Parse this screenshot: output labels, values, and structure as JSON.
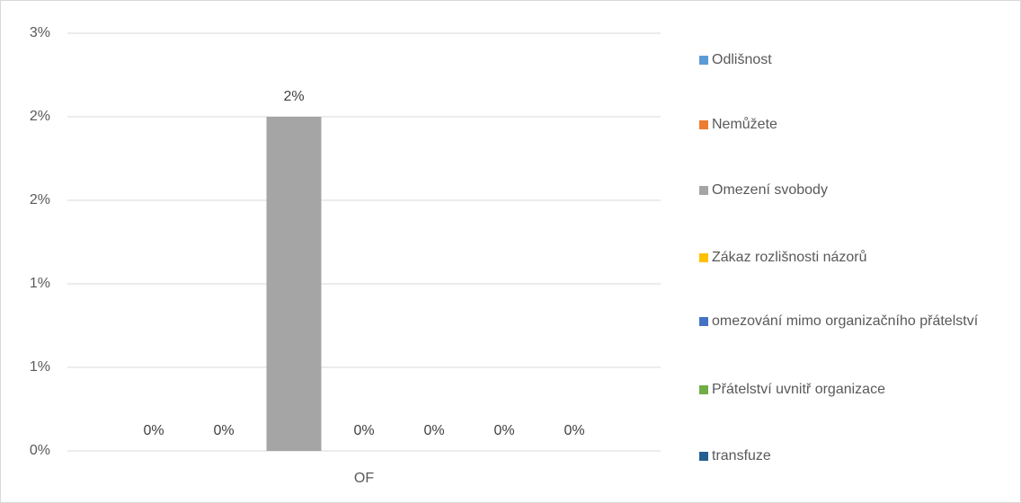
{
  "chart_data": {
    "type": "bar",
    "categories": [
      "OF"
    ],
    "series": [
      {
        "name": "Odlišnost",
        "color": "#5B9BD5",
        "values": [
          0
        ],
        "value_labels": [
          "0%"
        ]
      },
      {
        "name": "Nemůžete",
        "color": "#ED7D31",
        "values": [
          0
        ],
        "value_labels": [
          "0%"
        ]
      },
      {
        "name": "Omezení svobody",
        "color": "#A5A5A5",
        "values": [
          2
        ],
        "value_labels": [
          "2%"
        ]
      },
      {
        "name": "Zákaz rozlišnosti názorů",
        "color": "#FFC000",
        "values": [
          0
        ],
        "value_labels": [
          "0%"
        ]
      },
      {
        "name": "omezování mimo organizačního přátelství",
        "color": "#4472C4",
        "values": [
          0
        ],
        "value_labels": [
          "0%"
        ]
      },
      {
        "name": "Přátelství uvnitř organizace",
        "color": "#70AD47",
        "values": [
          0
        ],
        "value_labels": [
          "0%"
        ]
      },
      {
        "name": "transfuze",
        "color": "#255E91",
        "values": [
          0
        ],
        "value_labels": [
          "0%"
        ]
      }
    ],
    "ylim": [
      0,
      2.5
    ],
    "yticks": [
      {
        "value": 0,
        "label": "0%"
      },
      {
        "value": 0.5,
        "label": "1%"
      },
      {
        "value": 1,
        "label": "1%"
      },
      {
        "value": 1.5,
        "label": "2%"
      },
      {
        "value": 2,
        "label": "2%"
      },
      {
        "value": 2.5,
        "label": "3%"
      }
    ],
    "grid": true,
    "legend": "right"
  }
}
